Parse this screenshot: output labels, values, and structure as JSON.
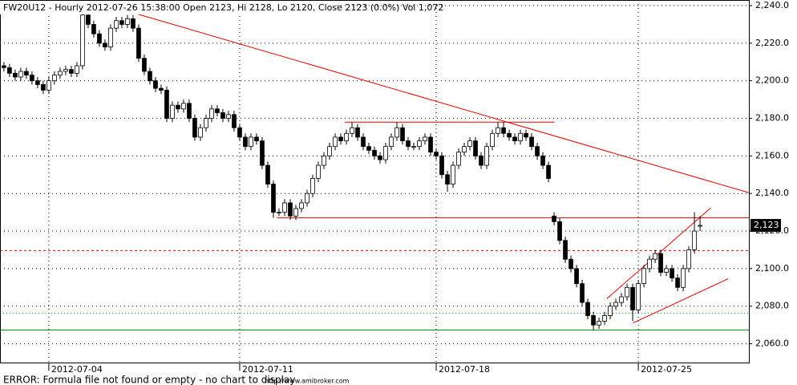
{
  "chart_data": {
    "type": "candlestick",
    "title": "FW20U12 - Hourly 2012-07-26 15:38:00 Open 2123, Hi 2128, Lo 2120, Close 2123 (0.0%) Vol 1,072",
    "up_color": "#ffffff",
    "down_color": "#000000",
    "outline_color": "#000000",
    "xlim": [
      -0.7,
      132.7
    ],
    "xticks": [
      {
        "value": 8,
        "label": "2012-07-04"
      },
      {
        "value": 42,
        "label": "2012-07-11"
      },
      {
        "value": 77,
        "label": "2012-07-18"
      },
      {
        "value": 113,
        "label": "2012-07-25"
      }
    ],
    "ylim": [
      2050,
      2243
    ],
    "yticks": [
      {
        "value": 2060,
        "label": "2,060.0"
      },
      {
        "value": 2080,
        "label": "2,080.0"
      },
      {
        "value": 2100,
        "label": "2,100.0"
      },
      {
        "value": 2120,
        "label": "2,120.0"
      },
      {
        "value": 2140,
        "label": "2,140.0"
      },
      {
        "value": 2160,
        "label": "2,160.0"
      },
      {
        "value": 2180,
        "label": "2,180.0"
      },
      {
        "value": 2200,
        "label": "2,200.0"
      },
      {
        "value": 2220,
        "label": "2,220.0"
      },
      {
        "value": 2240,
        "label": "2,240.0"
      }
    ],
    "grid": true,
    "open": [
      2208,
      2207,
      2204,
      2202,
      2205,
      2203,
      2200,
      2198,
      2195,
      2200,
      2203,
      2205,
      2206,
      2204,
      2208,
      2235,
      2230,
      2225,
      2220,
      2218,
      2228,
      2232,
      2230,
      2233,
      2228,
      2212,
      2205,
      2200,
      2196,
      2195,
      2180,
      2187,
      2185,
      2188,
      2180,
      2170,
      2175,
      2180,
      2185,
      2183,
      2180,
      2182,
      2175,
      2170,
      2165,
      2170,
      2168,
      2155,
      2145,
      2130,
      2130,
      2135,
      2128,
      2132,
      2135,
      2140,
      2148,
      2155,
      2160,
      2165,
      2170,
      2168,
      2172,
      2175,
      2170,
      2165,
      2163,
      2160,
      2158,
      2165,
      2170,
      2175,
      2168,
      2165,
      2165,
      2168,
      2170,
      2162,
      2160,
      2150,
      2145,
      2155,
      2162,
      2165,
      2168,
      2160,
      2155,
      2165,
      2172,
      2175,
      2172,
      2170,
      2168,
      2172,
      2170,
      2165,
      2160,
      2155,
      2128,
      2125,
      2115,
      2105,
      2100,
      2092,
      2082,
      2075,
      2070,
      2072,
      2075,
      2080,
      2082,
      2085,
      2090,
      2078,
      2092,
      2100,
      2105,
      2108,
      2098,
      2100,
      2095,
      2090,
      2100,
      2110,
      2123
    ],
    "high": [
      2210,
      2209,
      2206,
      2207,
      2207,
      2205,
      2202,
      2200,
      2202,
      2205,
      2207,
      2208,
      2208,
      2210,
      2237,
      2237,
      2232,
      2227,
      2222,
      2230,
      2234,
      2234,
      2235,
      2235,
      2230,
      2214,
      2207,
      2202,
      2198,
      2197,
      2189,
      2189,
      2190,
      2190,
      2182,
      2177,
      2182,
      2187,
      2187,
      2185,
      2184,
      2184,
      2177,
      2172,
      2172,
      2172,
      2170,
      2157,
      2147,
      2132,
      2137,
      2137,
      2134,
      2137,
      2142,
      2150,
      2157,
      2162,
      2167,
      2172,
      2172,
      2174,
      2178,
      2177,
      2172,
      2167,
      2165,
      2162,
      2167,
      2172,
      2178,
      2177,
      2170,
      2167,
      2170,
      2172,
      2172,
      2164,
      2162,
      2152,
      2157,
      2164,
      2167,
      2170,
      2170,
      2162,
      2167,
      2174,
      2178,
      2178,
      2174,
      2172,
      2174,
      2174,
      2172,
      2167,
      2162,
      2157,
      2130,
      2127,
      2117,
      2107,
      2102,
      2094,
      2084,
      2077,
      2074,
      2077,
      2082,
      2084,
      2087,
      2092,
      2092,
      2094,
      2102,
      2107,
      2110,
      2110,
      2102,
      2102,
      2097,
      2102,
      2112,
      2130,
      2128
    ],
    "low": [
      2205,
      2202,
      2200,
      2200,
      2201,
      2198,
      2196,
      2193,
      2193,
      2198,
      2201,
      2203,
      2202,
      2202,
      2206,
      2228,
      2223,
      2218,
      2216,
      2216,
      2226,
      2228,
      2228,
      2226,
      2210,
      2203,
      2198,
      2194,
      2193,
      2178,
      2178,
      2183,
      2183,
      2178,
      2168,
      2168,
      2173,
      2178,
      2181,
      2178,
      2178,
      2173,
      2168,
      2163,
      2163,
      2166,
      2153,
      2143,
      2127,
      2128,
      2128,
      2126,
      2126,
      2130,
      2133,
      2138,
      2146,
      2153,
      2158,
      2163,
      2166,
      2166,
      2170,
      2168,
      2163,
      2161,
      2158,
      2156,
      2156,
      2163,
      2168,
      2166,
      2163,
      2163,
      2163,
      2166,
      2160,
      2158,
      2148,
      2141,
      2143,
      2153,
      2160,
      2163,
      2158,
      2153,
      2153,
      2163,
      2170,
      2170,
      2168,
      2166,
      2166,
      2168,
      2163,
      2158,
      2153,
      2146,
      2123,
      2113,
      2103,
      2098,
      2090,
      2080,
      2073,
      2067,
      2068,
      2070,
      2073,
      2078,
      2080,
      2083,
      2072,
      2076,
      2090,
      2098,
      2103,
      2096,
      2096,
      2093,
      2088,
      2088,
      2098,
      2108,
      2120
    ],
    "close": [
      2207,
      2204,
      2202,
      2205,
      2203,
      2200,
      2198,
      2195,
      2200,
      2203,
      2205,
      2206,
      2204,
      2208,
      2235,
      2230,
      2225,
      2220,
      2218,
      2228,
      2232,
      2230,
      2233,
      2228,
      2212,
      2205,
      2200,
      2196,
      2195,
      2180,
      2187,
      2185,
      2188,
      2180,
      2170,
      2175,
      2180,
      2185,
      2183,
      2180,
      2182,
      2175,
      2170,
      2165,
      2170,
      2168,
      2155,
      2145,
      2130,
      2130,
      2135,
      2128,
      2132,
      2135,
      2140,
      2148,
      2155,
      2160,
      2165,
      2170,
      2168,
      2172,
      2175,
      2170,
      2165,
      2163,
      2160,
      2158,
      2165,
      2170,
      2175,
      2168,
      2165,
      2165,
      2168,
      2170,
      2162,
      2160,
      2150,
      2145,
      2155,
      2162,
      2165,
      2168,
      2160,
      2155,
      2165,
      2172,
      2175,
      2172,
      2170,
      2168,
      2172,
      2170,
      2165,
      2160,
      2155,
      2148,
      2125,
      2115,
      2105,
      2100,
      2092,
      2082,
      2075,
      2070,
      2072,
      2075,
      2080,
      2082,
      2085,
      2090,
      2078,
      2092,
      2100,
      2105,
      2108,
      2098,
      2100,
      2095,
      2090,
      2100,
      2110,
      2120,
      2123
    ],
    "last_label": {
      "value": 2123,
      "label": "2,123"
    },
    "lines": [
      {
        "x": [
          23.6,
          132.7
        ],
        "y": [
          2235.7,
          2140.4
        ],
        "color": "#e00000",
        "dash": false
      },
      {
        "x": [
          60.7,
          98.1
        ],
        "y": [
          2178,
          2178
        ],
        "color": "#e00000",
        "dash": false
      },
      {
        "x": [
          48.6,
          132.7
        ],
        "y": [
          2127,
          2127
        ],
        "color": "#e00000",
        "dash": false
      },
      {
        "x": [
          -0.7,
          132.7
        ],
        "y": [
          2109.6,
          2109.6
        ],
        "color": "#e00000",
        "dash": true
      },
      {
        "x": [
          -0.7,
          132.7
        ],
        "y": [
          2076.3,
          2076.3
        ],
        "color": "#00a000",
        "dash": true
      },
      {
        "x": [
          -0.7,
          132.7
        ],
        "y": [
          2067.3,
          2067.3
        ],
        "color": "#00a000",
        "dash": false
      },
      {
        "x": [
          107.4,
          125.9
        ],
        "y": [
          2084,
          2132.3
        ],
        "color": "#e00000",
        "dash": false
      },
      {
        "x": [
          112.1,
          129
        ],
        "y": [
          2071.1,
          2094.6
        ],
        "color": "#e00000",
        "dash": false
      }
    ]
  },
  "footer": {
    "error": "ERROR: Formula file not found or empty - no chart to display",
    "url": "http://www.amibroker.com"
  }
}
